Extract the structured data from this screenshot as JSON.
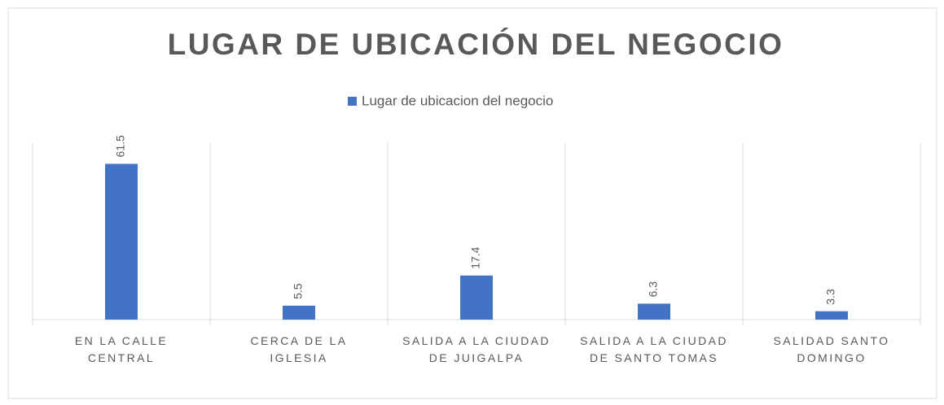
{
  "chart_data": {
    "type": "bar",
    "title": "LUGAR DE UBICACIÓN DEL NEGOCIO",
    "categories": [
      "EN LA CALLE CENTRAL",
      "CERCA DE LA IGLESIA",
      "SALIDA A LA CIUDAD DE JUIGALPA",
      "SALIDA A LA CIUDAD DE SANTO TOMAS",
      "SALIDAD SANTO DOMINGO"
    ],
    "series": [
      {
        "name": "Lugar de ubicacion del negocio",
        "color": "#4472c4",
        "values": [
          61.5,
          5.5,
          17.4,
          6.3,
          3.3
        ]
      }
    ],
    "ylim": [
      0,
      70
    ]
  }
}
